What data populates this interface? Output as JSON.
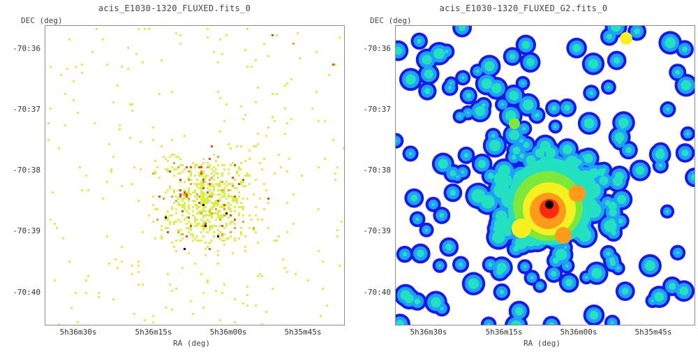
{
  "panels": [
    {
      "id": "left",
      "title": "acis_E1030-1320_FLUXED.fits_0",
      "ylabel": "DEC (deg)",
      "xlabel": "RA (deg)",
      "yticks": [
        "-70:36",
        "-70:37",
        "-70:38",
        "-70:39",
        "-70:40"
      ],
      "xticks": [
        "5h36m30s",
        "5h36m15s",
        "5h36m00s",
        "5h35m45s"
      ],
      "render": "sparse-pixels"
    },
    {
      "id": "right",
      "title": "acis_E1030-1320_FLUXED_G2.fits_0",
      "ylabel": "DEC (deg)",
      "xlabel": "RA (deg)",
      "yticks": [
        "-70:36",
        "-70:37",
        "-70:38",
        "-70:39",
        "-70:40"
      ],
      "xticks": [
        "5h36m30s",
        "5h36m15s",
        "5h36m00s",
        "5h35m45s"
      ],
      "render": "smoothed-heatmap"
    }
  ],
  "colors": {
    "background": "#ffffff",
    "frame": "#8c8c8c",
    "pixel_low": "#d8f04a",
    "pixel_mid": "#f0a020",
    "pixel_high": "#e05010",
    "pixel_peak": "#000000",
    "heat_1": "#1a1ae6",
    "heat_2": "#1fa0ff",
    "heat_3": "#22e0c0",
    "heat_4": "#7ee83a",
    "heat_5": "#f5f020",
    "heat_6": "#ff9a1a",
    "heat_7": "#ff2a10",
    "heat_peak": "#000000"
  }
}
